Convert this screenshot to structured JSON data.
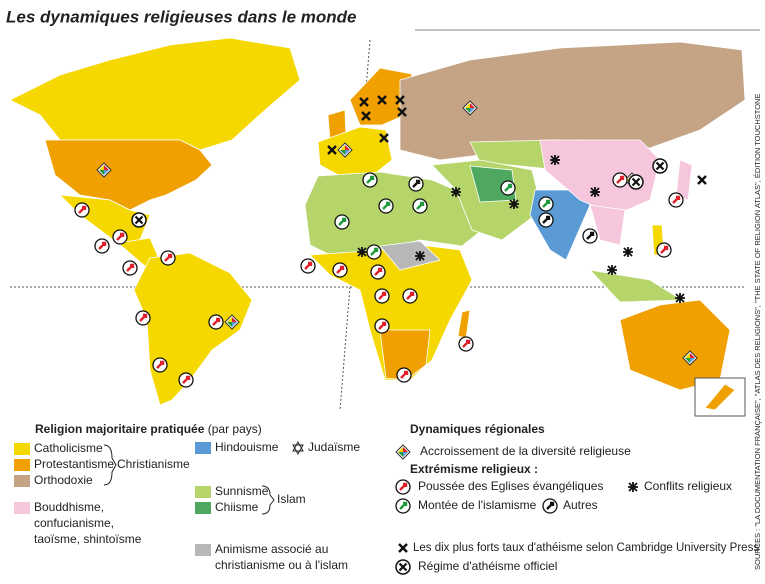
{
  "header": {
    "title": "Les dynamiques religieuses dans le monde"
  },
  "legend_left": {
    "heading": "Religion majoritaire pratiquée",
    "heading_note": "(par pays)",
    "catholicism": "Catholicisme",
    "protestantism": "Protestantisme",
    "orthodoxy": "Orthodoxie",
    "christianity": "Christianisme",
    "buddhism": [
      "Bouddhisme,",
      "confucianisme,",
      "taoïsme, shintoïsme"
    ],
    "hinduism": "Hindouisme",
    "judaism": "Judaïsme",
    "sunnism": "Sunnisme",
    "shiism": "Chiisme",
    "islam": "Islam",
    "animism": [
      "Animisme associé au",
      "christianisme ou à l'islam"
    ]
  },
  "legend_right": {
    "heading": "Dynamiques régionales",
    "diversity": "Accroissement de la diversité religieuse",
    "extremism": "Extrémisme religieux :",
    "evangelical": "Poussée des Eglises évangéliques",
    "islamism": "Montée de l'islamisme",
    "others": "Autres",
    "conflicts": "Conflits religieux",
    "atheism": "Les dix plus forts taux d'athéisme selon Cambridge University Press",
    "official_atheism": "Régime d'athéisme officiel"
  },
  "source": "SOURCES : \"LA DOCUMENTATION FRANÇAISE\", \"ATLAS DES RELIGIONS\", \"THE STATE OF RELIGION ATLAS\", ÉDITION TOUCHSTONE"
}
